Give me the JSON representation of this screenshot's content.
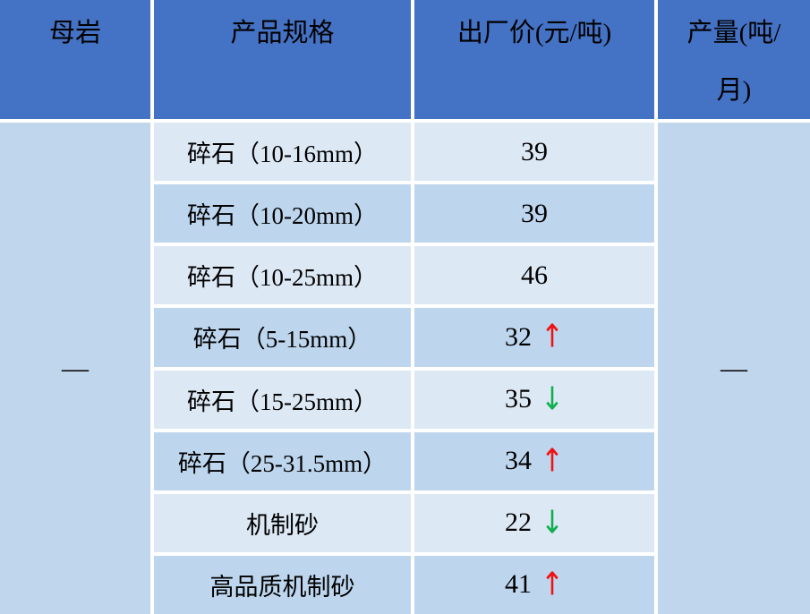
{
  "table": {
    "headers": {
      "rock": "母岩",
      "spec": "产品规格",
      "price": "出厂价(元/吨)",
      "output": "产量(吨/\n月)"
    },
    "rock_value": "—",
    "output_value": "—",
    "rows": [
      {
        "spec": "碎石（10-16mm）",
        "price": "39",
        "trend": "none"
      },
      {
        "spec": "碎石（10-20mm）",
        "price": "39",
        "trend": "none"
      },
      {
        "spec": "碎石（10-25mm）",
        "price": "46",
        "trend": "none"
      },
      {
        "spec": "碎石（5-15mm）",
        "price": "32",
        "trend": "up"
      },
      {
        "spec": "碎石（15-25mm）",
        "price": "35",
        "trend": "down"
      },
      {
        "spec": "碎石（25-31.5mm）",
        "price": "34",
        "trend": "up"
      },
      {
        "spec": "机制砂",
        "price": "22",
        "trend": "down"
      },
      {
        "spec": "高品质机制砂",
        "price": "41",
        "trend": "up"
      }
    ]
  },
  "icons": {
    "up": "↑",
    "down": "↓"
  },
  "colors": {
    "header_bg": "#4472c4",
    "row_light": "#dde8f5",
    "row_dark": "#bdd6ee",
    "merged_bg": "#bfd6ec",
    "grid": "#ffffff",
    "text": "#000000",
    "arrow_up": "#f01212",
    "arrow_down": "#10af4e"
  }
}
